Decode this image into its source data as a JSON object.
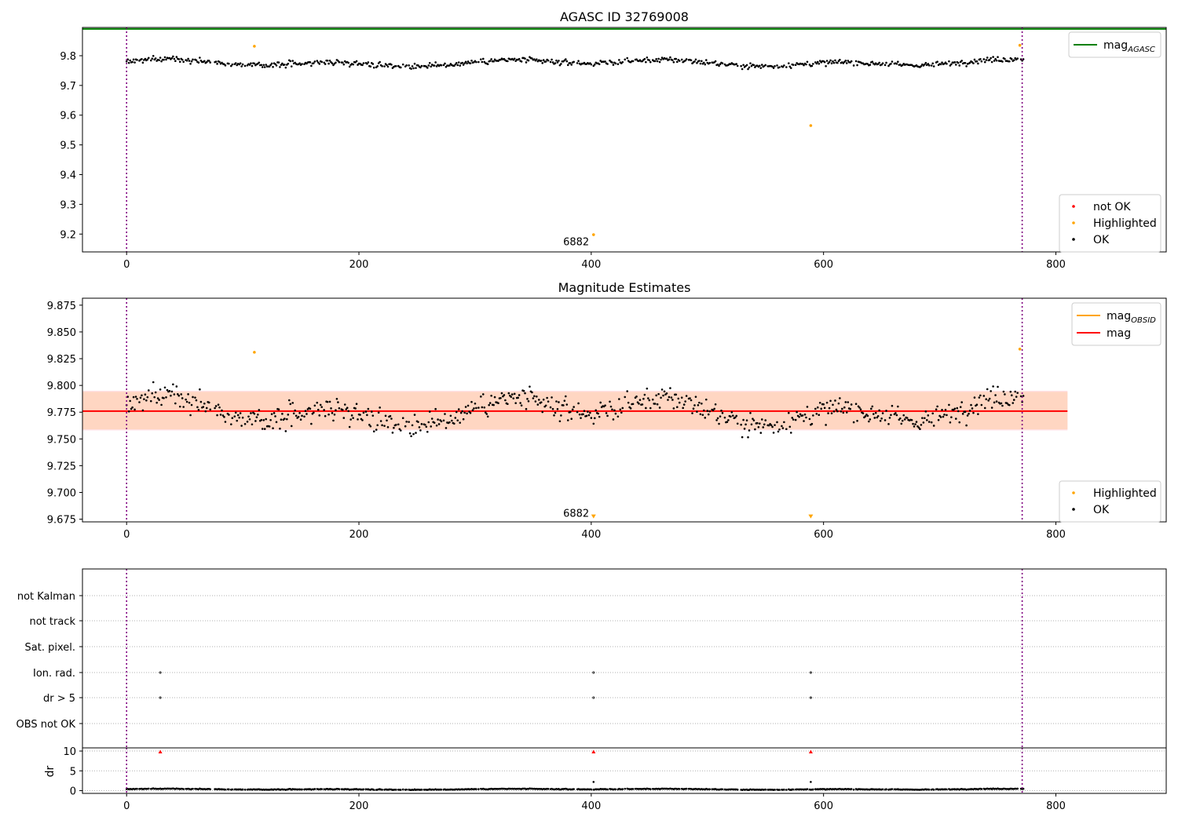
{
  "chart_data": [
    {
      "type": "scatter",
      "title": "AGASC ID 32769008",
      "xlim": [
        -38,
        895
      ],
      "ylim": [
        9.14,
        9.895
      ],
      "xticks": [
        0,
        200,
        400,
        600,
        800
      ],
      "yticks": [
        9.2,
        9.3,
        9.4,
        9.5,
        9.6,
        9.7,
        9.8
      ],
      "ytick_labels": [
        "9.2",
        "9.3",
        "9.4",
        "9.5",
        "9.6",
        "9.7",
        "9.8"
      ],
      "grid": false,
      "hlines": [
        {
          "name": "mag_AGASC",
          "y": 9.89,
          "color": "#008000"
        }
      ],
      "vlines": [
        0,
        771
      ],
      "annotation": {
        "text": "6882",
        "x": 387,
        "y": 9.175
      },
      "legend_top": {
        "placement": "upper-right",
        "entries": [
          {
            "base": "mag",
            "sub": "AGASC",
            "color": "#008000",
            "kind": "line"
          }
        ]
      },
      "legend_bottom": {
        "placement": "lower-right",
        "entries": [
          {
            "label": "not OK",
            "color": "#ff0000",
            "kind": "dot"
          },
          {
            "label": "Highlighted",
            "color": "#ffa500",
            "kind": "dot"
          },
          {
            "label": "OK",
            "color": "#000000",
            "kind": "dot"
          }
        ]
      },
      "series": [
        {
          "name": "Highlighted",
          "color": "#ffa500",
          "points": [
            [
              110,
              9.832
            ],
            [
              402,
              9.198
            ],
            [
              589,
              9.565
            ],
            [
              769,
              9.835
            ]
          ]
        }
      ],
      "ok_series": {
        "name": "OK",
        "color": "#000000",
        "x_range": [
          0,
          772
        ],
        "y_center": 9.776,
        "spread": 0.012
      }
    },
    {
      "type": "scatter",
      "title": "Magnitude Estimates",
      "xlim": [
        -38,
        895
      ],
      "ylim": [
        9.6725,
        9.8815
      ],
      "xticks": [
        0,
        200,
        400,
        600,
        800
      ],
      "yticks": [
        9.675,
        9.7,
        9.725,
        9.75,
        9.775,
        9.8,
        9.825,
        9.85,
        9.875
      ],
      "ytick_labels": [
        "9.675",
        "9.700",
        "9.725",
        "9.750",
        "9.775",
        "9.800",
        "9.825",
        "9.850",
        "9.875"
      ],
      "grid": false,
      "mag_line": {
        "y": 9.776,
        "x_range": [
          -38,
          810
        ],
        "color": "#ff0000"
      },
      "band_inner": {
        "y_range": [
          9.759,
          9.794
        ],
        "x_range": [
          -38,
          810
        ],
        "color": "#ffd6c2"
      },
      "band_outer": {
        "y_range": [
          9.758,
          9.795
        ],
        "x_range": [
          -38,
          810
        ],
        "color": "#ffe0e4"
      },
      "vlines": [
        0,
        771
      ],
      "annotation": {
        "text": "6882",
        "x": 387,
        "y": 9.681
      },
      "legend_top": {
        "placement": "upper-right",
        "entries": [
          {
            "base": "mag",
            "sub": "OBSID",
            "color": "#ffa500",
            "kind": "line"
          },
          {
            "base": "mag",
            "sub": "",
            "color": "#ff0000",
            "kind": "line"
          }
        ]
      },
      "legend_bottom": {
        "placement": "lower-right",
        "entries": [
          {
            "label": "Highlighted",
            "color": "#ffa500",
            "kind": "dot"
          },
          {
            "label": "OK",
            "color": "#000000",
            "kind": "dot"
          }
        ]
      },
      "series": [
        {
          "name": "Highlighted",
          "color": "#ffa500",
          "points": [
            [
              110,
              9.831
            ],
            [
              769,
              9.834
            ]
          ]
        },
        {
          "name": "Highlighted out of range",
          "color": "#ffa500",
          "marker": "triangle-down",
          "points": [
            [
              402,
              9.675
            ],
            [
              589,
              9.675
            ]
          ]
        }
      ],
      "ok_series": {
        "name": "OK",
        "color": "#000000",
        "x_range": [
          0,
          772
        ],
        "y_center": 9.776,
        "spread": 0.014
      }
    },
    {
      "type": "scatter",
      "title": "",
      "xlim": [
        -38,
        895
      ],
      "categories": [
        "not Kalman",
        "not track",
        "Sat. pixel.",
        "Ion. rad.",
        "dr > 5",
        "OBS not OK"
      ],
      "grid": true,
      "flag_points": [
        {
          "category": "Ion. rad.",
          "x": [
            29,
            402,
            589
          ]
        },
        {
          "category": "dr > 5",
          "x": [
            29,
            402,
            589
          ]
        }
      ],
      "vlines": [
        0,
        771
      ]
    },
    {
      "type": "line",
      "title": "",
      "ylabel": "dr",
      "xlim": [
        -38,
        895
      ],
      "ylim": [
        -0.7,
        10.8
      ],
      "xticks": [
        0,
        200,
        400,
        600,
        800
      ],
      "yticks": [
        0,
        5,
        10
      ],
      "ytick_labels": [
        "0",
        "5",
        "10"
      ],
      "grid": true,
      "outliers_capped": {
        "color": "#ff0000",
        "marker": "triangle-up",
        "x": [
          29,
          402,
          589
        ],
        "y": 9.8
      },
      "outliers_low": {
        "x": [
          402,
          589
        ],
        "y": 2.2
      },
      "ok_series": {
        "name": "dr",
        "color": "#000000",
        "x_range": [
          0,
          772
        ],
        "y_center": 0.35,
        "spread": 0.12
      },
      "vlines": [
        0,
        771
      ]
    }
  ]
}
